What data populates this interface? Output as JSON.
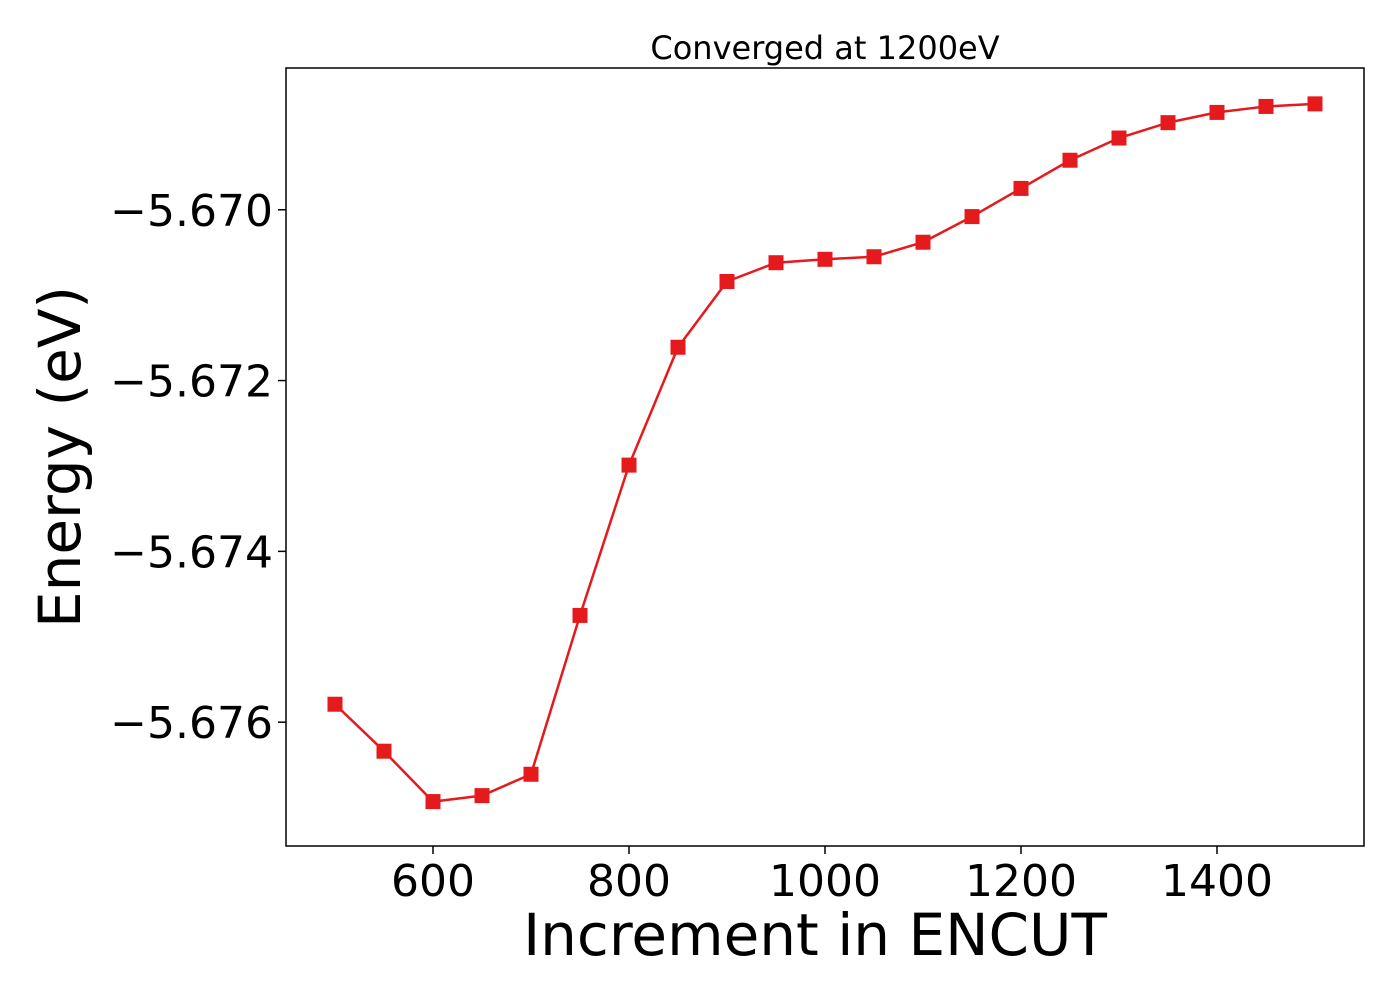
{
  "chart_data": {
    "type": "line",
    "title": "Converged at 1200eV",
    "xlabel": "Increment in ENCUT",
    "ylabel": "Energy (eV)",
    "xlim": [
      450,
      1550
    ],
    "ylim": [
      -5.67745,
      -5.66834
    ],
    "x_ticks": [
      600,
      800,
      1000,
      1200,
      1400
    ],
    "x_tick_labels": [
      "600",
      "800",
      "1000",
      "1200",
      "1400"
    ],
    "y_ticks": [
      -5.67,
      -5.672,
      -5.674,
      -5.676
    ],
    "y_tick_labels": [
      "−5.670",
      "−5.672",
      "−5.674",
      "−5.676"
    ],
    "grid": false,
    "series": [
      {
        "color": "#e41a1c",
        "marker": "square",
        "x": [
          500,
          550,
          600,
          650,
          700,
          750,
          800,
          850,
          900,
          950,
          1000,
          1050,
          1100,
          1150,
          1200,
          1250,
          1300,
          1350,
          1400,
          1450,
          1500
        ],
        "y": [
          -5.67579,
          -5.67634,
          -5.67693,
          -5.67686,
          -5.67661,
          -5.67475,
          -5.67299,
          -5.67161,
          -5.67084,
          -5.67062,
          -5.67058,
          -5.67055,
          -5.67038,
          -5.67008,
          -5.66975,
          -5.66942,
          -5.66916,
          -5.66898,
          -5.66886,
          -5.66879,
          -5.66876
        ]
      }
    ]
  }
}
